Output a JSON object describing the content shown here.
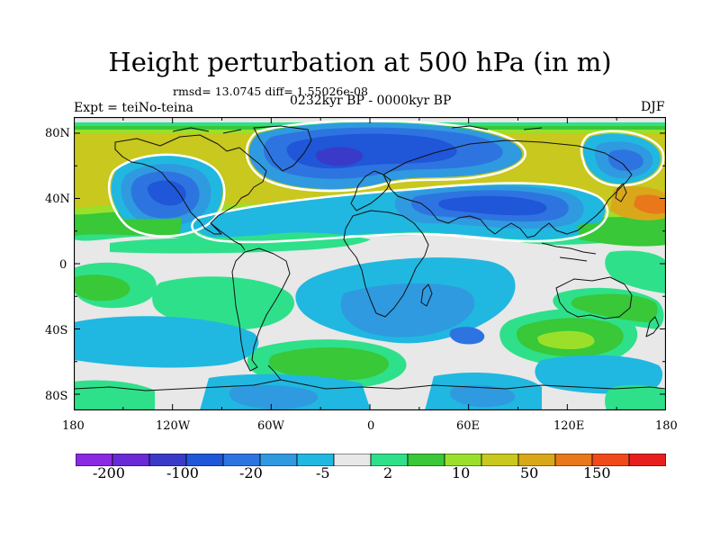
{
  "title": "Height perturbation at 500 hPa (in m)",
  "stats": "rmsd= 13.0745 diff= 1.55026e-08",
  "period": "0232kyr BP - 0000kyr BP",
  "experiment": "Expt = teiNo-teina",
  "season": "DJF",
  "axes": {
    "lat_ticks": [
      "80N",
      "40N",
      "0",
      "40S",
      "80S"
    ],
    "lon_ticks": [
      "180",
      "120W",
      "60W",
      "0",
      "60E",
      "120E",
      "180"
    ]
  },
  "colorbar": {
    "colors": [
      "#8a2be2",
      "#6a2bd6",
      "#3a3ac8",
      "#2056d8",
      "#2e74e0",
      "#2f9ae0",
      "#20b8e0",
      "#e8e8e8",
      "#2fe08a",
      "#38c838",
      "#9ae02a",
      "#c8c81e",
      "#d8a81a",
      "#e8781a",
      "#f04a1a",
      "#e81e1e"
    ],
    "labels": [
      "-200",
      "-100",
      "-20",
      "-5",
      "2",
      "10",
      "50",
      "150"
    ]
  },
  "palette": {
    "neutral": "#e8e8e8",
    "cyan": "#20b8e0",
    "light_blue": "#2f9ae0",
    "blue": "#2e74e0",
    "deep_blue": "#2056d8",
    "darker_blue": "#3a3ac8",
    "teal_green": "#2fe08a",
    "green": "#38c838",
    "yellow_green": "#9ae02a",
    "olive": "#c8c81e",
    "orange_yellow": "#d8a81a",
    "orange": "#e8781a"
  }
}
